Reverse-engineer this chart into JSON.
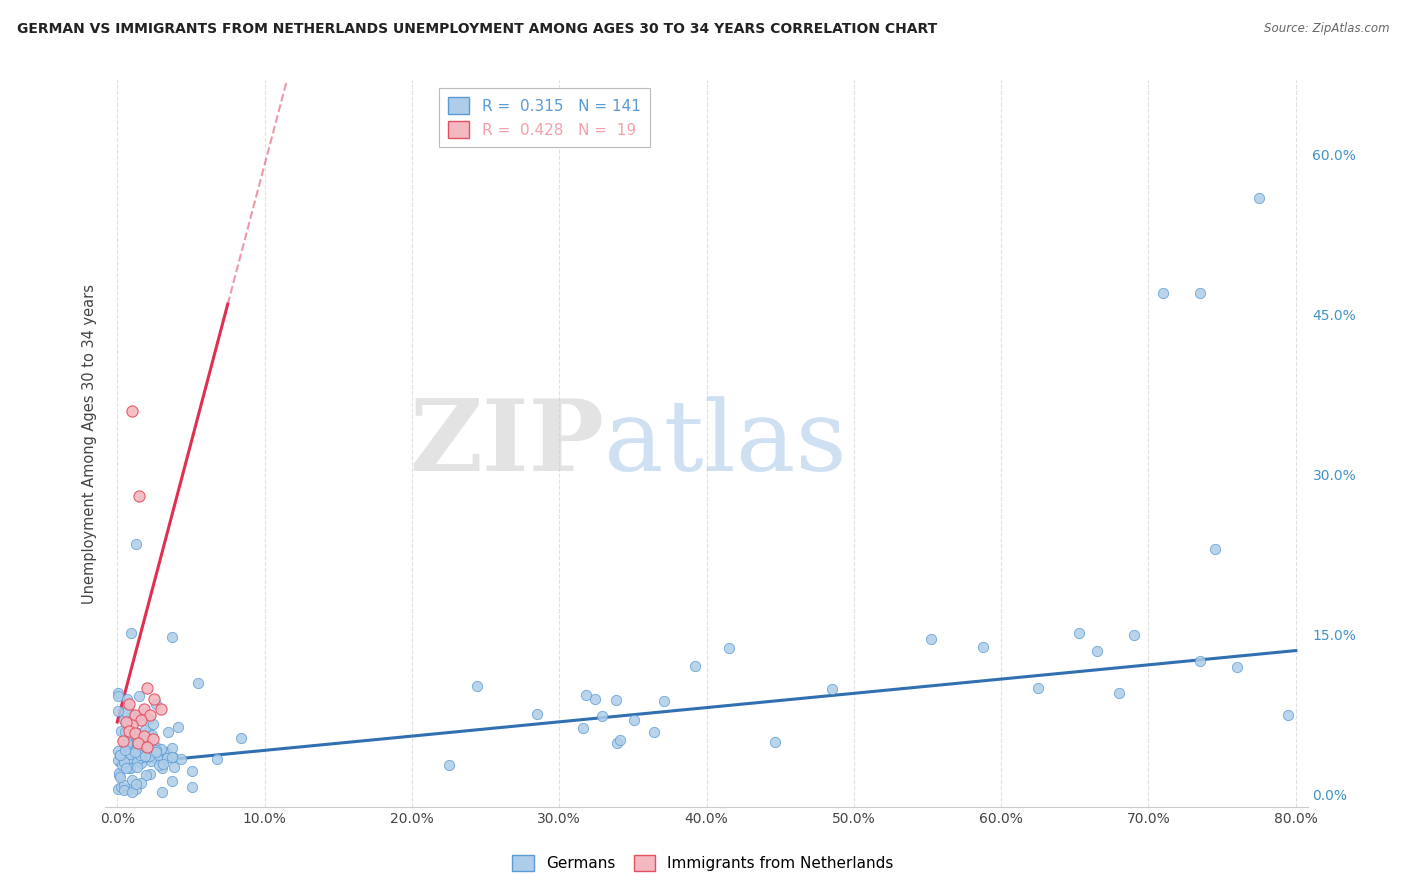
{
  "title": "GERMAN VS IMMIGRANTS FROM NETHERLANDS UNEMPLOYMENT AMONG AGES 30 TO 34 YEARS CORRELATION CHART",
  "source": "Source: ZipAtlas.com",
  "ylabel": "Unemployment Among Ages 30 to 34 years",
  "watermark_zip": "ZIP",
  "watermark_atlas": "atlas",
  "legend_items": [
    {
      "label": "R =  0.315   N = 141",
      "color": "#5b9bd5"
    },
    {
      "label": "R =  0.428   N =  19",
      "color": "#f4a0aa"
    }
  ],
  "legend_labels": [
    "Germans",
    "Immigrants from Netherlands"
  ],
  "background_color": "#ffffff",
  "grid_color": "#e0e0e0",
  "german_color": "#aecde8",
  "netherlands_color": "#f4b8c0",
  "german_edge_color": "#5b9bd5",
  "netherlands_edge_color": "#e05060",
  "german_line_color": "#3070b0",
  "netherlands_line_color": "#e03050",
  "xlim": [
    -0.008,
    0.808
  ],
  "ylim": [
    -0.012,
    0.67
  ],
  "xticks": [
    0.0,
    0.1,
    0.2,
    0.3,
    0.4,
    0.5,
    0.6,
    0.7,
    0.8
  ],
  "xticklabels": [
    "0.0%",
    "10.0%",
    "20.0%",
    "30.0%",
    "40.0%",
    "50.0%",
    "60.0%",
    "70.0%",
    "80.0%"
  ],
  "yticks_right": [
    0.0,
    0.15,
    0.3,
    0.45,
    0.6
  ],
  "yticklabels_right": [
    "0.0%",
    "15.0%",
    "30.0%",
    "45.0%",
    "60.0%"
  ],
  "R_german": 0.315,
  "N_german": 141,
  "R_netherlands": 0.428,
  "N_netherlands": 19,
  "german_line_x0": 0.0,
  "german_line_y0": 0.028,
  "german_line_x1": 0.8,
  "german_line_y1": 0.135,
  "netherlands_line_x0": 0.0,
  "netherlands_line_y0": 0.068,
  "netherlands_line_x1": 0.075,
  "netherlands_line_y1": 0.46
}
